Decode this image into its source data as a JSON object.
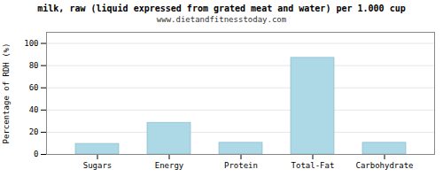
{
  "chart_data": {
    "type": "bar",
    "title": "milk, raw (liquid expressed from grated meat and water) per 1.000 cup",
    "subtitle": "www.dietandfitnesstoday.com",
    "ylabel": "Percentage of RDH (%)",
    "categories": [
      "Sugars",
      "Energy",
      "Protein",
      "Total-Fat",
      "Carbohydrate"
    ],
    "values": [
      9.5,
      28.5,
      10.5,
      87.0,
      10.5
    ],
    "color": "#add8e6",
    "ylim": [
      0,
      110
    ],
    "yticks": [
      0,
      20,
      40,
      60,
      80,
      100
    ],
    "grid": true
  }
}
